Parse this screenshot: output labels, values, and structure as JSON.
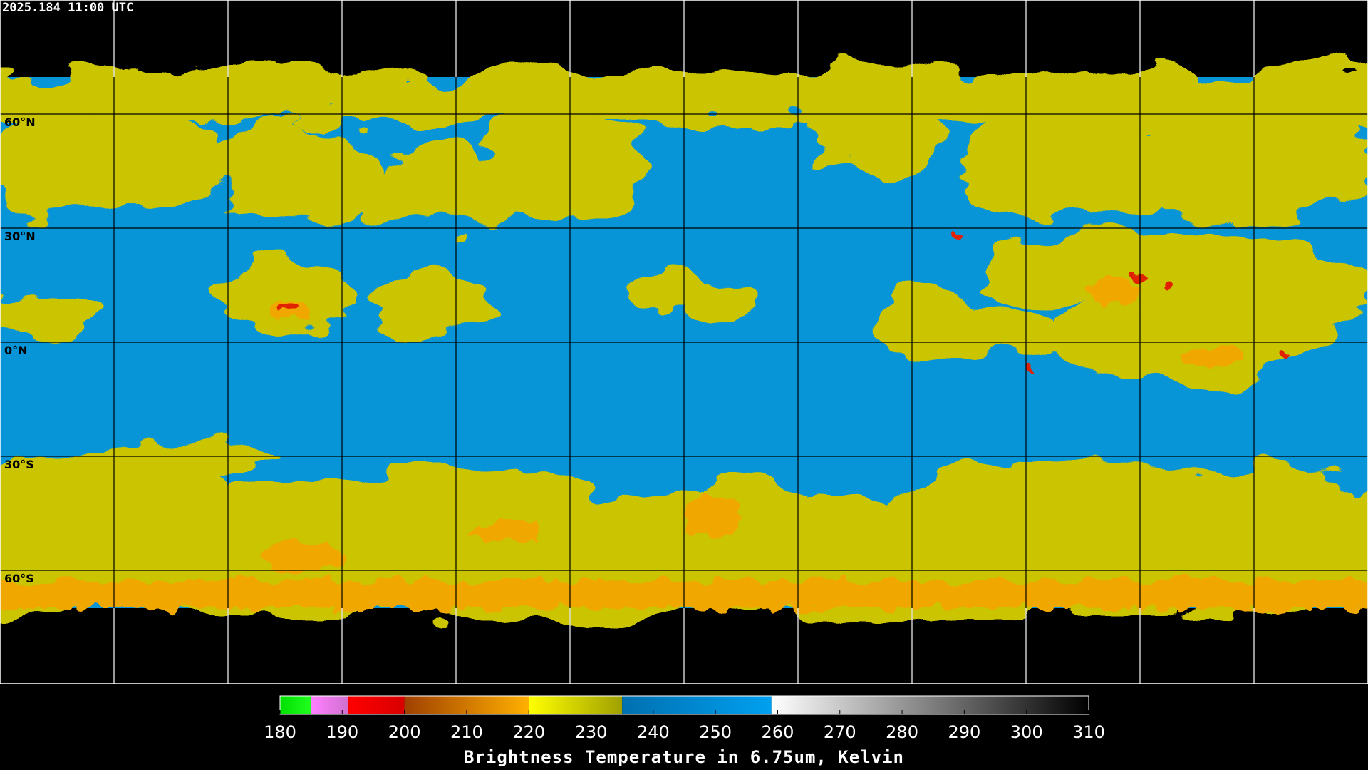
{
  "header": {
    "timestamp": "2025.184 11:00 UTC"
  },
  "latitude_labels": [
    "60°N",
    "30°N",
    "0°N",
    "30°S",
    "60°S"
  ],
  "colorbar": {
    "title": "Brightness Temperature in 6.75um, Kelvin",
    "lim": [
      180,
      310
    ],
    "ticks": [
      180,
      190,
      200,
      210,
      220,
      230,
      240,
      250,
      260,
      270,
      280,
      290,
      300,
      310
    ],
    "segments": [
      {
        "from": 180,
        "to": 185,
        "color_start": "#00e000",
        "color_end": "#20ff20"
      },
      {
        "from": 185,
        "to": 191,
        "color_start": "#ff80ff",
        "color_end": "#d070d0"
      },
      {
        "from": 191,
        "to": 200,
        "color_start": "#ff0000",
        "color_end": "#d80000"
      },
      {
        "from": 200,
        "to": 220,
        "color_start": "#a04000",
        "color_end": "#ffb000"
      },
      {
        "from": 220,
        "to": 235,
        "color_start": "#ffff00",
        "color_end": "#a0a000"
      },
      {
        "from": 235,
        "to": 259,
        "color_start": "#0070b0",
        "color_end": "#00a0f0"
      },
      {
        "from": 259,
        "to": 310,
        "color_start": "#ffffff",
        "color_end": "#000000"
      }
    ]
  }
}
